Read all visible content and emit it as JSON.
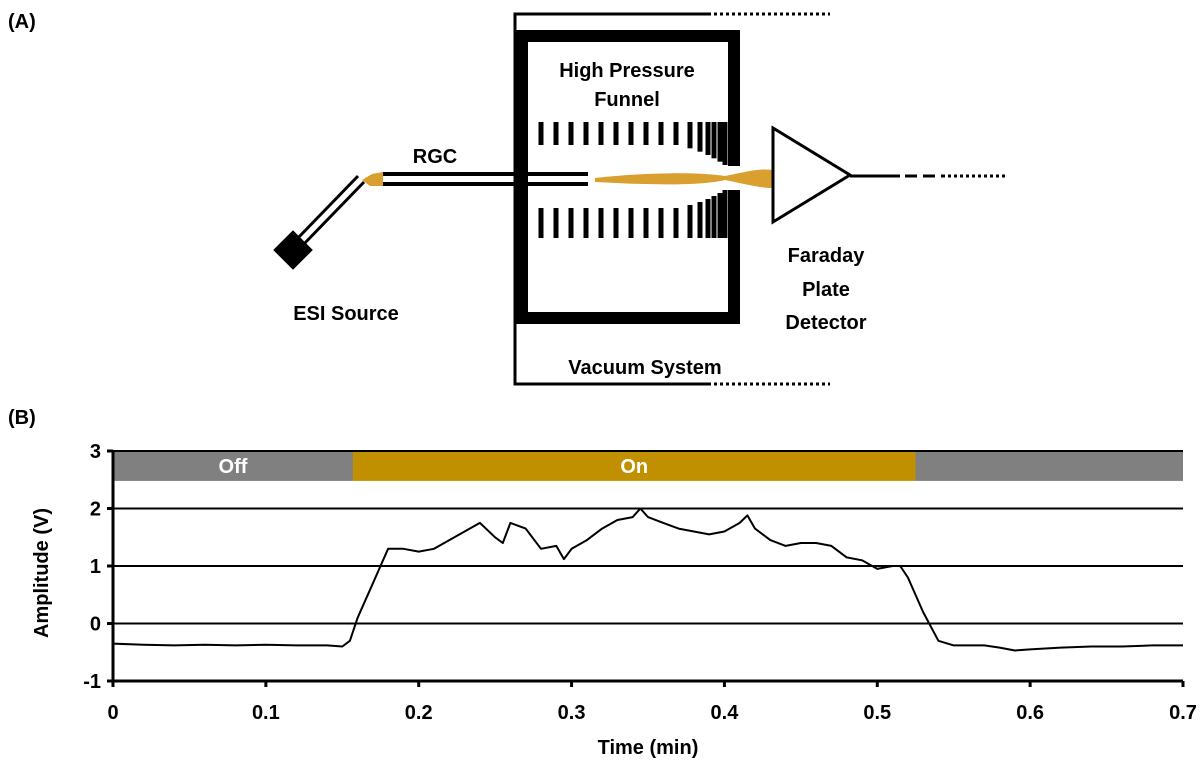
{
  "panel_a": {
    "label": "(A)",
    "funnel_label": [
      "High Pressure",
      "Funnel"
    ],
    "capillary_label": "RGC",
    "source_label": "ESI Source",
    "detector_label": [
      "Faraday",
      "Plate",
      "Detector"
    ],
    "vacuum_label": "Vacuum System"
  },
  "panel_b": {
    "label": "(B)"
  },
  "chart_data": {
    "type": "line",
    "xlabel": "Time (min)",
    "ylabel": "Amplitude (V)",
    "xlim": [
      0,
      0.7
    ],
    "xticks": [
      0,
      0.1,
      0.2,
      0.3,
      0.4,
      0.5,
      0.6,
      0.7
    ],
    "ylim": [
      -1,
      3
    ],
    "yticks": [
      -1,
      0,
      1,
      2,
      3
    ],
    "grid": true,
    "bands": [
      {
        "label": "Off",
        "start": 0,
        "end": 0.157,
        "color": "#808080"
      },
      {
        "label": "On",
        "start": 0.157,
        "end": 0.525,
        "color": "#c09000"
      },
      {
        "label": null,
        "start": 0.525,
        "end": 0.7,
        "color": "#808080"
      }
    ],
    "band_bottom": 2.48,
    "color": "#000000",
    "x": [
      0,
      0.02,
      0.04,
      0.06,
      0.08,
      0.1,
      0.12,
      0.14,
      0.15,
      0.155,
      0.16,
      0.17,
      0.175,
      0.18,
      0.19,
      0.2,
      0.21,
      0.22,
      0.23,
      0.24,
      0.25,
      0.255,
      0.26,
      0.27,
      0.28,
      0.29,
      0.295,
      0.3,
      0.31,
      0.32,
      0.33,
      0.34,
      0.345,
      0.35,
      0.36,
      0.37,
      0.38,
      0.39,
      0.4,
      0.41,
      0.415,
      0.42,
      0.43,
      0.44,
      0.45,
      0.46,
      0.47,
      0.48,
      0.49,
      0.5,
      0.51,
      0.515,
      0.52,
      0.53,
      0.54,
      0.55,
      0.57,
      0.58,
      0.59,
      0.6,
      0.62,
      0.64,
      0.66,
      0.68,
      0.7
    ],
    "values": [
      -0.35,
      -0.37,
      -0.38,
      -0.37,
      -0.38,
      -0.37,
      -0.38,
      -0.38,
      -0.4,
      -0.3,
      0.1,
      0.7,
      1.0,
      1.3,
      1.3,
      1.25,
      1.3,
      1.45,
      1.6,
      1.75,
      1.5,
      1.4,
      1.75,
      1.65,
      1.3,
      1.35,
      1.12,
      1.3,
      1.45,
      1.65,
      1.8,
      1.85,
      2.0,
      1.85,
      1.75,
      1.65,
      1.6,
      1.55,
      1.6,
      1.75,
      1.88,
      1.65,
      1.45,
      1.35,
      1.4,
      1.4,
      1.35,
      1.15,
      1.1,
      0.95,
      1.0,
      1.0,
      0.8,
      0.2,
      -0.3,
      -0.38,
      -0.38,
      -0.42,
      -0.47,
      -0.45,
      -0.42,
      -0.4,
      -0.4,
      -0.38,
      -0.38
    ]
  }
}
